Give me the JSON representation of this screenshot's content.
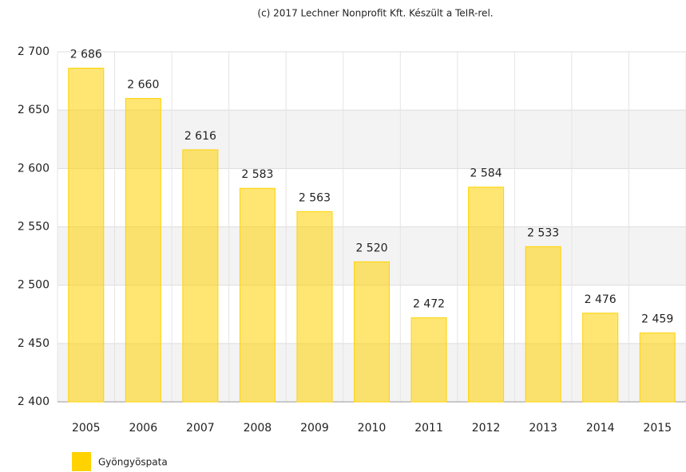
{
  "chart_data": {
    "type": "bar",
    "title": "(c) 2017 Lechner Nonprofit Kft. Készült a TeIR-rel.",
    "categories": [
      "2005",
      "2006",
      "2007",
      "2008",
      "2009",
      "2010",
      "2011",
      "2012",
      "2013",
      "2014",
      "2015"
    ],
    "series": [
      {
        "name": "Gyöngyöspata",
        "color": "#ffd200",
        "values": [
          2686,
          2660,
          2616,
          2583,
          2563,
          2520,
          2472,
          2584,
          2533,
          2476,
          2459
        ],
        "value_labels": [
          "2 686",
          "2 660",
          "2 616",
          "2 583",
          "2 563",
          "2 520",
          "2 472",
          "2 584",
          "2 533",
          "2 476",
          "2 459"
        ]
      }
    ],
    "ylim": [
      2400,
      2700
    ],
    "yticks": [
      {
        "value": 2400,
        "label": "2 400"
      },
      {
        "value": 2450,
        "label": "2 450"
      },
      {
        "value": 2500,
        "label": "2 500"
      },
      {
        "value": 2550,
        "label": "2 550"
      },
      {
        "value": 2600,
        "label": "2 600"
      },
      {
        "value": 2650,
        "label": "2 650"
      },
      {
        "value": 2700,
        "label": "2 700"
      }
    ],
    "grid": true,
    "legend": "bottom-left"
  }
}
